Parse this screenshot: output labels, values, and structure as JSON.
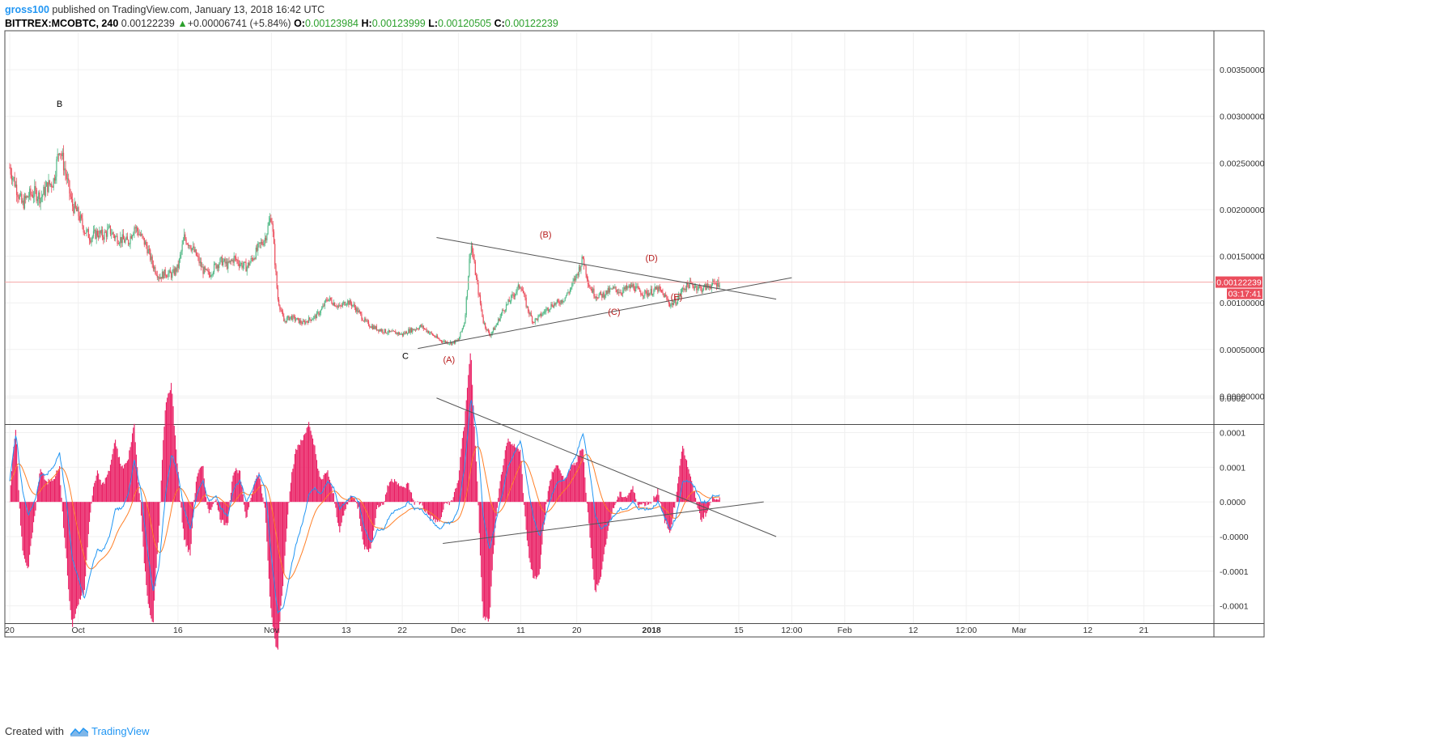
{
  "header": {
    "user": "gross100",
    "published": " published on TradingView.com, January 13, 2018 16:42 UTC",
    "symbol": "BITTREX:MCOBTC, 240",
    "last": "0.00122239",
    "change_arrow": "▲",
    "change": "+0.00006741 (+5.84%)",
    "o_label": "O:",
    "o": "0.00123984",
    "h_label": "H:",
    "h": "0.00123999",
    "l_label": "L:",
    "l": "0.00120505",
    "c_label": "C:",
    "c": "0.00122239"
  },
  "footer": {
    "created_with": "Created with",
    "brand": "TradingView"
  },
  "colors": {
    "up": "#53b987",
    "down": "#eb4d5c",
    "wave": "#b71c1c",
    "price_line": "#f5a5a5",
    "macd": "#2196f3",
    "signal": "#ff7f27",
    "hist": "#e91e63",
    "trend": "#555555",
    "border": "#4a4a4a",
    "grid": "#f0f0f0"
  },
  "chart_data": [
    {
      "type": "candlestick",
      "symbol": "BITTREX:MCOBTC",
      "timeframe": "240",
      "x_ticks": [
        {
          "label": "20",
          "pos": 0.0
        },
        {
          "label": "Oct",
          "pos": 11
        },
        {
          "label": "16",
          "pos": 27
        },
        {
          "label": "Nov",
          "pos": 42
        },
        {
          "label": "13",
          "pos": 54
        },
        {
          "label": "22",
          "pos": 63
        },
        {
          "label": "Dec",
          "pos": 72
        },
        {
          "label": "11",
          "pos": 82
        },
        {
          "label": "20",
          "pos": 91
        },
        {
          "label": "2018",
          "pos": 103,
          "bold": true
        },
        {
          "label": "15",
          "pos": 117
        },
        {
          "label": "12:00",
          "pos": 125.5
        },
        {
          "label": "Feb",
          "pos": 134
        },
        {
          "label": "12",
          "pos": 145
        },
        {
          "label": "12:00",
          "pos": 153.5
        },
        {
          "label": "Mar",
          "pos": 162
        },
        {
          "label": "12",
          "pos": 173
        },
        {
          "label": "21",
          "pos": 182
        }
      ],
      "y_ticks": [
        "0.00350000",
        "0.00300000",
        "0.00250000",
        "0.00200000",
        "0.00150000",
        "0.00100000",
        "0.00050000",
        "0.00000000"
      ],
      "y_tick_values": [
        0.0035,
        0.003,
        0.0025,
        0.002,
        0.0015,
        0.001,
        0.0005,
        0.0
      ],
      "ylim": [
        -0.0003,
        0.0039
      ],
      "path_points": [
        [
          0,
          0.00245
        ],
        [
          1,
          0.00225
        ],
        [
          2,
          0.00205
        ],
        [
          3,
          0.00215
        ],
        [
          4,
          0.00218
        ],
        [
          5,
          0.00213
        ],
        [
          6,
          0.00225
        ],
        [
          7,
          0.0023
        ],
        [
          8,
          0.00268
        ],
        [
          9,
          0.00238
        ],
        [
          10,
          0.00205
        ],
        [
          11,
          0.00195
        ],
        [
          12,
          0.00178
        ],
        [
          13,
          0.0017
        ],
        [
          14,
          0.00175
        ],
        [
          15,
          0.00172
        ],
        [
          16,
          0.00178
        ],
        [
          17,
          0.0017
        ],
        [
          18,
          0.00168
        ],
        [
          19,
          0.00165
        ],
        [
          20,
          0.00182
        ],
        [
          21,
          0.00172
        ],
        [
          22,
          0.0016
        ],
        [
          23,
          0.0014
        ],
        [
          24,
          0.00128
        ],
        [
          25,
          0.00132
        ],
        [
          26,
          0.0013
        ],
        [
          27,
          0.00138
        ],
        [
          28,
          0.0017
        ],
        [
          29,
          0.00162
        ],
        [
          30,
          0.0015
        ],
        [
          31,
          0.00135
        ],
        [
          32,
          0.0013
        ],
        [
          33,
          0.0014
        ],
        [
          34,
          0.00145
        ],
        [
          35,
          0.0014
        ],
        [
          36,
          0.00148
        ],
        [
          37,
          0.00142
        ],
        [
          38,
          0.00138
        ],
        [
          39,
          0.00148
        ],
        [
          40,
          0.0016
        ],
        [
          41,
          0.0017
        ],
        [
          42,
          0.00195
        ],
        [
          43,
          0.00105
        ],
        [
          44,
          0.0008
        ],
        [
          45,
          0.00085
        ],
        [
          46,
          0.00082
        ],
        [
          47,
          0.00078
        ],
        [
          48,
          0.00082
        ],
        [
          49,
          0.00085
        ],
        [
          50,
          0.00092
        ],
        [
          51,
          0.00105
        ],
        [
          52,
          0.001
        ],
        [
          53,
          0.00095
        ],
        [
          54,
          0.00102
        ],
        [
          55,
          0.00098
        ],
        [
          56,
          0.0009
        ],
        [
          57,
          0.0008
        ],
        [
          58,
          0.00075
        ],
        [
          59,
          0.00072
        ],
        [
          60,
          0.0007
        ],
        [
          61,
          0.00068
        ],
        [
          62,
          0.00068
        ],
        [
          63,
          0.00066
        ],
        [
          64,
          0.0007
        ],
        [
          65,
          0.00072
        ],
        [
          66,
          0.00075
        ],
        [
          67,
          0.0007
        ],
        [
          68,
          0.00065
        ],
        [
          69,
          0.0006
        ],
        [
          70,
          0.00058
        ],
        [
          71,
          0.00057
        ],
        [
          72,
          0.0006
        ],
        [
          73,
          0.0008
        ],
        [
          74,
          0.00165
        ],
        [
          75,
          0.0012
        ],
        [
          76,
          0.0008
        ],
        [
          77,
          0.00065
        ],
        [
          78,
          0.00075
        ],
        [
          79,
          0.0009
        ],
        [
          80,
          0.001
        ],
        [
          81,
          0.0011
        ],
        [
          82,
          0.0012
        ],
        [
          83,
          0.00095
        ],
        [
          84,
          0.0008
        ],
        [
          85,
          0.00085
        ],
        [
          86,
          0.00092
        ],
        [
          87,
          0.00098
        ],
        [
          88,
          0.001
        ],
        [
          89,
          0.00105
        ],
        [
          90,
          0.00115
        ],
        [
          91,
          0.0013
        ],
        [
          92,
          0.00148
        ],
        [
          93,
          0.00118
        ],
        [
          94,
          0.00108
        ],
        [
          95,
          0.00108
        ],
        [
          96,
          0.00112
        ],
        [
          97,
          0.00115
        ],
        [
          98,
          0.00112
        ],
        [
          99,
          0.00115
        ],
        [
          100,
          0.00118
        ],
        [
          101,
          0.00112
        ],
        [
          102,
          0.0011
        ],
        [
          103,
          0.00112
        ],
        [
          104,
          0.00115
        ],
        [
          105,
          0.00108
        ],
        [
          106,
          0.00098
        ],
        [
          107,
          0.00102
        ],
        [
          108,
          0.00115
        ],
        [
          109,
          0.0012
        ],
        [
          110,
          0.00118
        ],
        [
          111,
          0.00115
        ],
        [
          112,
          0.00118
        ],
        [
          113,
          0.0012
        ],
        [
          114,
          0.00122
        ]
      ],
      "current_price": "0.00122239",
      "current_price_value": 0.00122239,
      "countdown": "03:17:41",
      "wave_labels": [
        {
          "text": "B",
          "x": 8,
          "y": 0.0031,
          "color": "black"
        },
        {
          "text": "C",
          "x": 63.5,
          "y": 0.0004,
          "color": "black"
        },
        {
          "text": "(A)",
          "x": 70.5,
          "y": 0.00036,
          "color": "red"
        },
        {
          "text": "(B)",
          "x": 86,
          "y": 0.0017,
          "color": "red"
        },
        {
          "text": "(C)",
          "x": 97,
          "y": 0.00087,
          "color": "red"
        },
        {
          "text": "(D)",
          "x": 103,
          "y": 0.00145,
          "color": "red"
        },
        {
          "text": "(E)",
          "x": 107,
          "y": 0.00103,
          "color": "red"
        }
      ],
      "trendlines": [
        {
          "from": [
            68.5,
            0.0017
          ],
          "to": [
            123,
            0.00104
          ]
        },
        {
          "from": [
            65.5,
            0.00051
          ],
          "to": [
            125.5,
            0.00127
          ]
        }
      ]
    },
    {
      "type": "macd",
      "y_ticks": [
        "0.0002",
        "0.0001",
        "0.0001",
        "0.0000",
        "-0.0000",
        "-0.0001",
        "-0.0001"
      ],
      "y_tick_values": [
        0.0002,
        0.00015,
        0.0001,
        5e-05,
        0.0,
        -5e-05,
        -0.0001
      ],
      "ylim": [
        -0.000125,
        0.00016
      ],
      "zero_value": 5e-05,
      "path_points": [
        [
          0,
          8e-05
        ],
        [
          1,
          0.00015
        ],
        [
          2,
          7e-05
        ],
        [
          3,
          3e-05
        ],
        [
          4,
          5e-05
        ],
        [
          5,
          9e-05
        ],
        [
          6,
          9e-05
        ],
        [
          7,
          0.0001
        ],
        [
          8,
          0.00012
        ],
        [
          9,
          6e-05
        ],
        [
          10,
          -3e-05
        ],
        [
          11,
          -6e-05
        ],
        [
          12,
          -9e-05
        ],
        [
          13,
          -5e-05
        ],
        [
          14,
          -2e-05
        ],
        [
          15,
          -2e-05
        ],
        [
          16,
          0.0
        ],
        [
          17,
          4e-05
        ],
        [
          18,
          4e-05
        ],
        [
          19,
          6e-05
        ],
        [
          20,
          0.00011
        ],
        [
          21,
          7e-05
        ],
        [
          22,
          -1e-05
        ],
        [
          23,
          -8e-05
        ],
        [
          24,
          -4e-05
        ],
        [
          25,
          6e-05
        ],
        [
          26,
          0.00012
        ],
        [
          27,
          9e-05
        ],
        [
          28,
          4e-05
        ],
        [
          29,
          1e-05
        ],
        [
          30,
          6e-05
        ],
        [
          31,
          8e-05
        ],
        [
          32,
          5e-05
        ],
        [
          33,
          6e-05
        ],
        [
          34,
          4e-05
        ],
        [
          35,
          3e-05
        ],
        [
          36,
          7e-05
        ],
        [
          37,
          8e-05
        ],
        [
          38,
          5e-05
        ],
        [
          39,
          7e-05
        ],
        [
          40,
          9e-05
        ],
        [
          41,
          7e-05
        ],
        [
          42,
          -3e-05
        ],
        [
          43,
          -0.00011
        ],
        [
          44,
          -0.0001
        ],
        [
          45,
          -5e-05
        ],
        [
          46,
          -1e-05
        ],
        [
          47,
          2e-05
        ],
        [
          48,
          6e-05
        ],
        [
          49,
          7e-05
        ],
        [
          50,
          6e-05
        ],
        [
          51,
          8e-05
        ],
        [
          52,
          7e-05
        ],
        [
          53,
          4e-05
        ],
        [
          54,
          5e-05
        ],
        [
          55,
          6e-05
        ],
        [
          56,
          5e-05
        ],
        [
          57,
          1e-05
        ],
        [
          58,
          -1e-05
        ],
        [
          59,
          1e-05
        ],
        [
          60,
          1e-05
        ],
        [
          61,
          3e-05
        ],
        [
          62,
          4e-05
        ],
        [
          63,
          4e-05
        ],
        [
          64,
          5e-05
        ],
        [
          65,
          4e-05
        ],
        [
          66,
          4e-05
        ],
        [
          67,
          3e-05
        ],
        [
          68,
          2e-05
        ],
        [
          69,
          1e-05
        ],
        [
          70,
          2e-05
        ],
        [
          71,
          2e-05
        ],
        [
          72,
          4e-05
        ],
        [
          73,
          0.0001
        ],
        [
          74,
          0.0002
        ],
        [
          75,
          0.00015
        ],
        [
          76,
          3e-05
        ],
        [
          77,
          -2e-05
        ],
        [
          78,
          2e-05
        ],
        [
          79,
          6e-05
        ],
        [
          80,
          0.0001
        ],
        [
          81,
          0.00012
        ],
        [
          82,
          0.00014
        ],
        [
          83,
          8e-05
        ],
        [
          84,
          3e-05
        ],
        [
          85,
          0.0
        ],
        [
          86,
          3e-05
        ],
        [
          87,
          6e-05
        ],
        [
          88,
          8e-05
        ],
        [
          89,
          8e-05
        ],
        [
          90,
          0.0001
        ],
        [
          91,
          0.00012
        ],
        [
          92,
          0.00015
        ],
        [
          93,
          0.0001
        ],
        [
          94,
          3e-05
        ],
        [
          95,
          1e-05
        ],
        [
          96,
          2e-05
        ],
        [
          97,
          3e-05
        ],
        [
          98,
          4e-05
        ],
        [
          99,
          4e-05
        ],
        [
          100,
          5e-05
        ],
        [
          101,
          4e-05
        ],
        [
          102,
          4e-05
        ],
        [
          103,
          4e-05
        ],
        [
          104,
          5e-05
        ],
        [
          105,
          3e-05
        ],
        [
          106,
          1e-05
        ],
        [
          107,
          3e-05
        ],
        [
          108,
          8e-05
        ],
        [
          109,
          8e-05
        ],
        [
          110,
          7e-05
        ],
        [
          111,
          5e-05
        ],
        [
          112,
          5e-05
        ],
        [
          113,
          6e-05
        ],
        [
          114,
          6e-05
        ]
      ],
      "trendlines": [
        {
          "from": [
            68.5,
            0.0002
          ],
          "to": [
            123,
            0.0
          ]
        },
        {
          "from": [
            69.5,
            -1e-05
          ],
          "to": [
            121,
            5e-05
          ]
        }
      ]
    }
  ]
}
